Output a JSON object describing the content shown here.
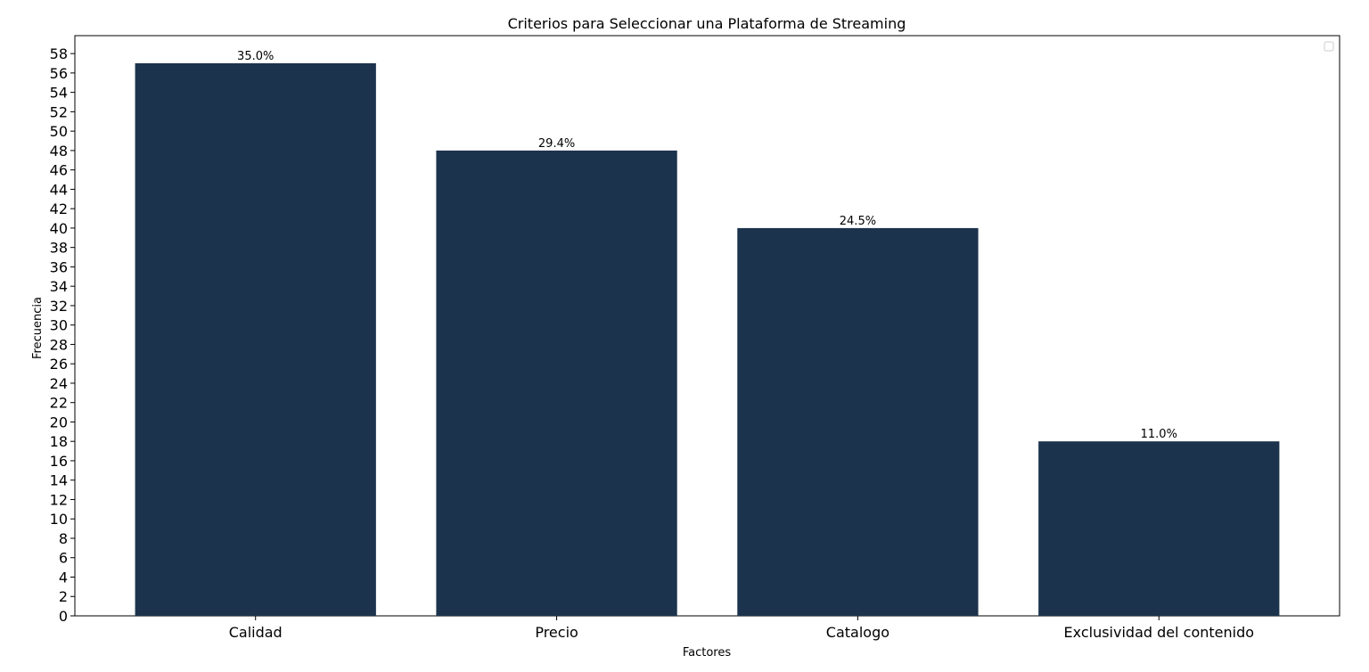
{
  "chart_data": {
    "type": "bar",
    "title": "Criterios para Seleccionar una Plataforma de Streaming",
    "xlabel": "Factores",
    "ylabel": "Frecuencia",
    "categories": [
      "Calidad",
      "Precio",
      "Catalogo",
      "Exclusividad del contenido"
    ],
    "values": [
      57,
      48,
      40,
      18
    ],
    "data_labels": [
      "35.0%",
      "29.4%",
      "24.5%",
      "11.0%"
    ],
    "ylim": [
      0,
      59.85
    ],
    "yticks": [
      0,
      2,
      4,
      6,
      8,
      10,
      12,
      14,
      16,
      18,
      20,
      22,
      24,
      26,
      28,
      30,
      32,
      34,
      36,
      38,
      40,
      42,
      44,
      46,
      48,
      50,
      52,
      54,
      56,
      58
    ],
    "bar_color": "#1c334d",
    "grid": false,
    "legend": {
      "placement": "top-right",
      "entries": []
    }
  }
}
